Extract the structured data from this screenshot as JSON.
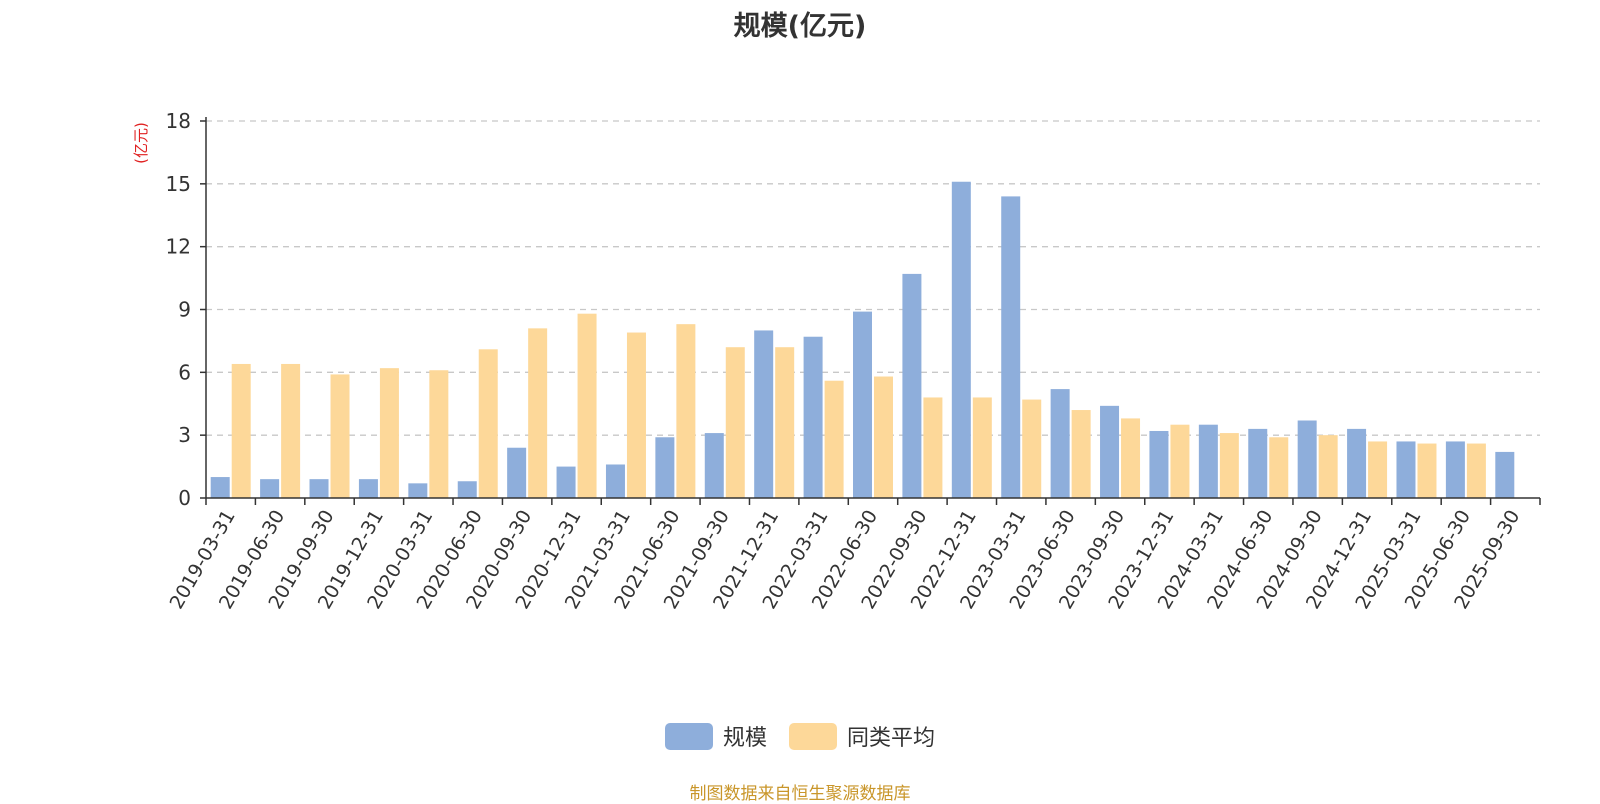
{
  "colors": {
    "scale": "#8eaedb",
    "avg": "#fdd899",
    "unit": "#e02020",
    "source": "#c9962a",
    "grid": "#c8c8c8",
    "axis": "#333333"
  },
  "chart_data": {
    "type": "bar",
    "title": "规模(亿元)",
    "ylabel": "(亿元)",
    "xlabel": "",
    "ylim": [
      0,
      18
    ],
    "yticks": [
      0,
      3,
      6,
      9,
      12,
      15,
      18
    ],
    "grid": true,
    "legend_position": "bottom",
    "categories": [
      "2019-03-31",
      "2019-06-30",
      "2019-09-30",
      "2019-12-31",
      "2020-03-31",
      "2020-06-30",
      "2020-09-30",
      "2020-12-31",
      "2021-03-31",
      "2021-06-30",
      "2021-09-30",
      "2021-12-31",
      "2022-03-31",
      "2022-06-30",
      "2022-09-30",
      "2022-12-31",
      "2023-03-31",
      "2023-06-30",
      "2023-09-30",
      "2023-12-31",
      "2024-03-31",
      "2024-06-30",
      "2024-09-30",
      "2024-12-31",
      "2025-03-31",
      "2025-06-30",
      "2025-09-30"
    ],
    "series": [
      {
        "name": "规模",
        "values": [
          1.0,
          0.9,
          0.9,
          0.9,
          0.7,
          0.8,
          2.4,
          1.5,
          1.6,
          2.9,
          3.1,
          8.0,
          7.7,
          8.9,
          10.7,
          15.1,
          14.4,
          5.2,
          4.4,
          3.2,
          3.5,
          3.3,
          3.7,
          3.3,
          2.7,
          2.7,
          2.2
        ]
      },
      {
        "name": "同类平均",
        "values": [
          6.4,
          6.4,
          5.9,
          6.2,
          6.1,
          7.1,
          8.1,
          8.8,
          7.9,
          8.3,
          7.2,
          7.2,
          5.6,
          5.8,
          4.8,
          4.8,
          4.7,
          4.2,
          3.8,
          3.5,
          3.1,
          2.9,
          3.0,
          2.7,
          2.6,
          2.6,
          null
        ]
      }
    ]
  },
  "legend": {
    "scale_label": "规模",
    "avg_label": "同类平均"
  },
  "source_note": "制图数据来自恒生聚源数据库"
}
